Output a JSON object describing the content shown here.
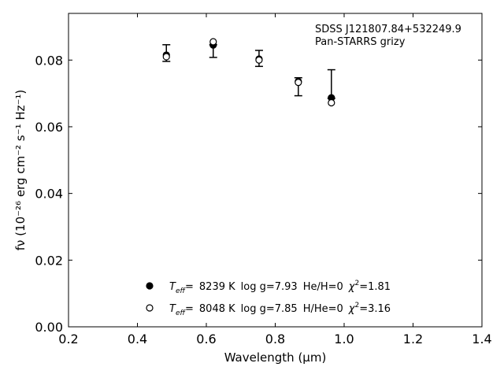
{
  "chart_data": {
    "type": "scatter",
    "annotation": [
      "SDSS J121807.84+532249.9",
      "Pan-STARRS grizy"
    ],
    "xlabel": "Wavelength (μm)",
    "ylabel": "fν (10⁻²⁶ erg cm⁻² s⁻¹ Hz⁻¹)",
    "xlim": [
      0.2,
      1.4
    ],
    "ylim": [
      0.0,
      0.094
    ],
    "x_ticks": [
      0.2,
      0.4,
      0.6,
      0.8,
      1.0,
      1.2,
      1.4
    ],
    "x_tick_labels": [
      "0.2",
      "0.4",
      "0.6",
      "0.8",
      "1.0",
      "1.2",
      "1.4"
    ],
    "y_ticks": [
      0.0,
      0.02,
      0.04,
      0.06,
      0.08
    ],
    "y_tick_labels": [
      "0.00",
      "0.02",
      "0.04",
      "0.06",
      "0.08"
    ],
    "grid": false,
    "legend_position": "lower-center",
    "observed": {
      "x": [
        0.484,
        0.62,
        0.753,
        0.867,
        0.963
      ],
      "y": [
        0.0822,
        0.0827,
        0.0805,
        0.073,
        0.0695
      ],
      "yerr_low": [
        0.0026,
        0.0019,
        0.0024,
        0.0037,
        0.001
      ],
      "yerr_high": [
        0.0024,
        0.0019,
        0.0024,
        0.0017,
        0.0076
      ]
    },
    "series": [
      {
        "marker": "filled",
        "x": [
          0.484,
          0.62,
          0.753,
          0.867,
          0.963
        ],
        "y": [
          0.0815,
          0.0845,
          0.0803,
          0.0736,
          0.0687
        ],
        "label": {
          "teff_label": "T",
          "teff_sub": "eff",
          "eq": "=",
          "teff": "8239 K",
          "logg": "log g=7.93",
          "comp": "He/H=0",
          "chi_label": "χ",
          "chi_sup": "2",
          "chi": "=1.81"
        }
      },
      {
        "marker": "open",
        "x": [
          0.484,
          0.62,
          0.753,
          0.867,
          0.963
        ],
        "y": [
          0.081,
          0.0855,
          0.08,
          0.0733,
          0.0672
        ],
        "label": {
          "teff_label": "T",
          "teff_sub": "eff",
          "eq": "=",
          "teff": "8048 K",
          "logg": "log g=7.85",
          "comp": "H/He=0",
          "chi_label": "χ",
          "chi_sup": "2",
          "chi": "=3.16"
        }
      }
    ]
  }
}
